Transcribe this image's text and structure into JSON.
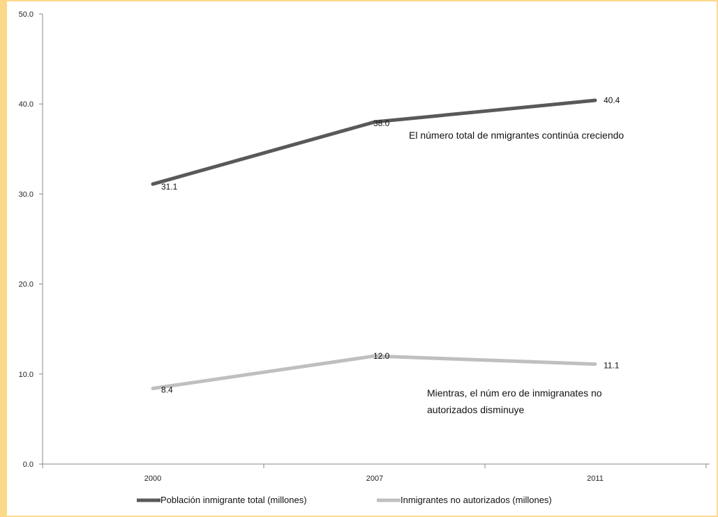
{
  "chart_data": {
    "type": "line",
    "categories": [
      "2000",
      "2007",
      "2011"
    ],
    "ylim": [
      0,
      50
    ],
    "yticks": [
      "0.0",
      "10.0",
      "20.0",
      "30.0",
      "40.0",
      "50.0"
    ],
    "grid": false,
    "legend_position": "bottom",
    "series": [
      {
        "name": "Población inmigrante total (millones)",
        "values": [
          31.1,
          38.0,
          40.4
        ],
        "labels": [
          "31.1",
          "38.0",
          "40.4"
        ],
        "color": "#595959"
      },
      {
        "name": "Inmigrantes no autorizados (millones)",
        "values": [
          8.4,
          12.0,
          11.1
        ],
        "labels": [
          "8.4",
          "12.0",
          "11.1"
        ],
        "color": "#bfbfbf"
      }
    ],
    "annotations": [
      "El número total de nmigrantes continúa creciendo",
      "Mientras, el núm ero  de inmigranates no",
      "autorizados disminuye"
    ]
  }
}
